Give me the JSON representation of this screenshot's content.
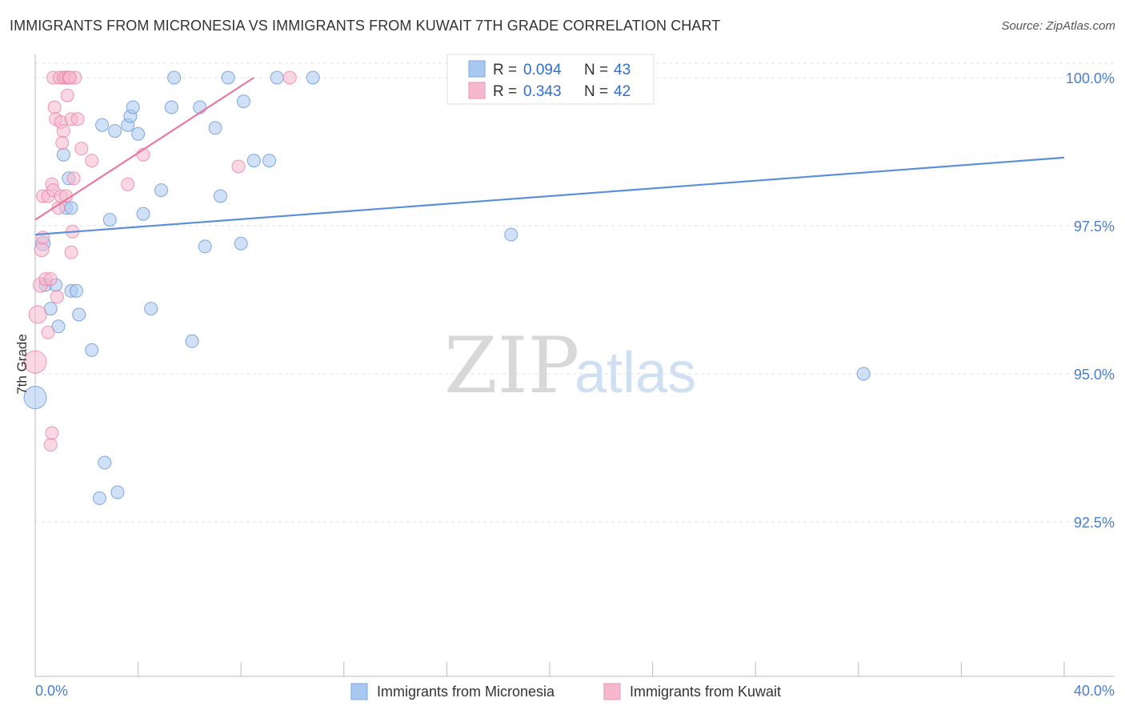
{
  "header": {
    "title": "IMMIGRANTS FROM MICRONESIA VS IMMIGRANTS FROM KUWAIT 7TH GRADE CORRELATION CHART",
    "source": "Source: ZipAtlas.com"
  },
  "watermark": {
    "zip": "ZIP",
    "atlas": "atlas"
  },
  "legend": {
    "rows": [
      {
        "r_label": "R = ",
        "r_value": "0.094",
        "n_label": "N = ",
        "n_value": "43",
        "color": "#a9c8f0"
      },
      {
        "r_label": "R = ",
        "r_value": "0.343",
        "n_label": "N = ",
        "n_value": "42",
        "color": "#f5b8cc"
      }
    ]
  },
  "bottom_legend": [
    {
      "label": "Immigrants from Micronesia",
      "color": "#a9c8f0"
    },
    {
      "label": "Immigrants from Kuwait",
      "color": "#f5b8cc"
    }
  ],
  "chart_data": {
    "type": "scatter",
    "title": "IMMIGRANTS FROM MICRONESIA VS IMMIGRANTS FROM KUWAIT 7TH GRADE CORRELATION CHART",
    "xlabel": "",
    "ylabel": "7th Grade",
    "xlim": [
      0,
      40
    ],
    "ylim": [
      90.0,
      100.25
    ],
    "x_tick_labels": [
      "0.0%",
      "40.0%"
    ],
    "y_ticks": [
      92.5,
      95.0,
      97.5,
      100.0
    ],
    "y_tick_labels": [
      "92.5%",
      "95.0%",
      "97.5%",
      "100.0%"
    ],
    "series": [
      {
        "name": "Immigrants from Micronesia",
        "color": "#5b8fd6",
        "fill": "#a9c8f0",
        "r": 0.094,
        "n": 43,
        "trend": {
          "x": [
            0,
            40
          ],
          "y": [
            97.35,
            98.65
          ]
        },
        "points": [
          {
            "x": 0.0,
            "y": 94.6,
            "s": 14
          },
          {
            "x": 0.3,
            "y": 97.2,
            "s": 9
          },
          {
            "x": 0.4,
            "y": 96.5,
            "s": 8
          },
          {
            "x": 0.6,
            "y": 96.1,
            "s": 8
          },
          {
            "x": 0.8,
            "y": 96.5,
            "s": 8
          },
          {
            "x": 0.9,
            "y": 95.8,
            "s": 8
          },
          {
            "x": 1.1,
            "y": 98.7,
            "s": 8
          },
          {
            "x": 1.2,
            "y": 97.8,
            "s": 8
          },
          {
            "x": 1.4,
            "y": 97.8,
            "s": 8
          },
          {
            "x": 1.3,
            "y": 98.3,
            "s": 8
          },
          {
            "x": 1.4,
            "y": 96.4,
            "s": 8
          },
          {
            "x": 1.6,
            "y": 96.4,
            "s": 8
          },
          {
            "x": 1.7,
            "y": 96.0,
            "s": 8
          },
          {
            "x": 2.2,
            "y": 95.4,
            "s": 8
          },
          {
            "x": 2.6,
            "y": 99.2,
            "s": 8
          },
          {
            "x": 2.7,
            "y": 93.5,
            "s": 8
          },
          {
            "x": 2.5,
            "y": 92.9,
            "s": 8
          },
          {
            "x": 2.9,
            "y": 97.6,
            "s": 8
          },
          {
            "x": 3.1,
            "y": 99.1,
            "s": 8
          },
          {
            "x": 3.2,
            "y": 93.0,
            "s": 8
          },
          {
            "x": 3.6,
            "y": 99.2,
            "s": 8
          },
          {
            "x": 3.7,
            "y": 99.35,
            "s": 8
          },
          {
            "x": 3.8,
            "y": 99.5,
            "s": 8
          },
          {
            "x": 4.0,
            "y": 99.05,
            "s": 8
          },
          {
            "x": 4.2,
            "y": 97.7,
            "s": 8
          },
          {
            "x": 4.5,
            "y": 96.1,
            "s": 8
          },
          {
            "x": 4.9,
            "y": 98.1,
            "s": 8
          },
          {
            "x": 5.3,
            "y": 99.5,
            "s": 8
          },
          {
            "x": 5.4,
            "y": 100.0,
            "s": 8
          },
          {
            "x": 6.1,
            "y": 95.55,
            "s": 8
          },
          {
            "x": 6.4,
            "y": 99.5,
            "s": 8
          },
          {
            "x": 6.6,
            "y": 97.15,
            "s": 8
          },
          {
            "x": 7.0,
            "y": 99.15,
            "s": 8
          },
          {
            "x": 7.2,
            "y": 98.0,
            "s": 8
          },
          {
            "x": 7.5,
            "y": 100.0,
            "s": 8
          },
          {
            "x": 8.0,
            "y": 97.2,
            "s": 8
          },
          {
            "x": 8.1,
            "y": 99.6,
            "s": 8
          },
          {
            "x": 8.5,
            "y": 98.6,
            "s": 8
          },
          {
            "x": 9.1,
            "y": 98.6,
            "s": 8
          },
          {
            "x": 9.4,
            "y": 100.0,
            "s": 8
          },
          {
            "x": 10.8,
            "y": 100.0,
            "s": 8
          },
          {
            "x": 18.5,
            "y": 97.35,
            "s": 8
          },
          {
            "x": 32.2,
            "y": 95.0,
            "s": 8
          }
        ]
      },
      {
        "name": "Immigrants from Kuwait",
        "color": "#e87aa0",
        "fill": "#f5b8cc",
        "r": 0.343,
        "n": 42,
        "trend": {
          "x": [
            0,
            8.5
          ],
          "y": [
            97.6,
            100.0
          ]
        },
        "points": [
          {
            "x": 0.0,
            "y": 95.2,
            "s": 14
          },
          {
            "x": 0.1,
            "y": 96.0,
            "s": 11
          },
          {
            "x": 0.2,
            "y": 96.5,
            "s": 9
          },
          {
            "x": 0.25,
            "y": 97.1,
            "s": 9
          },
          {
            "x": 0.3,
            "y": 97.3,
            "s": 8
          },
          {
            "x": 0.3,
            "y": 98.0,
            "s": 8
          },
          {
            "x": 0.4,
            "y": 96.6,
            "s": 8
          },
          {
            "x": 0.5,
            "y": 95.7,
            "s": 8
          },
          {
            "x": 0.5,
            "y": 98.0,
            "s": 8
          },
          {
            "x": 0.6,
            "y": 96.6,
            "s": 8
          },
          {
            "x": 0.6,
            "y": 93.8,
            "s": 8
          },
          {
            "x": 0.65,
            "y": 94.0,
            "s": 8
          },
          {
            "x": 0.65,
            "y": 98.2,
            "s": 8
          },
          {
            "x": 0.7,
            "y": 98.1,
            "s": 8
          },
          {
            "x": 0.7,
            "y": 100.0,
            "s": 8
          },
          {
            "x": 0.75,
            "y": 99.5,
            "s": 8
          },
          {
            "x": 0.8,
            "y": 99.3,
            "s": 8
          },
          {
            "x": 0.85,
            "y": 96.3,
            "s": 8
          },
          {
            "x": 0.9,
            "y": 97.8,
            "s": 8
          },
          {
            "x": 0.95,
            "y": 100.0,
            "s": 8
          },
          {
            "x": 1.0,
            "y": 99.25,
            "s": 8
          },
          {
            "x": 1.0,
            "y": 98.0,
            "s": 8
          },
          {
            "x": 1.05,
            "y": 98.9,
            "s": 8
          },
          {
            "x": 1.1,
            "y": 99.1,
            "s": 8
          },
          {
            "x": 1.1,
            "y": 100.0,
            "s": 8
          },
          {
            "x": 1.2,
            "y": 100.0,
            "s": 8
          },
          {
            "x": 1.2,
            "y": 98.0,
            "s": 8
          },
          {
            "x": 1.25,
            "y": 99.7,
            "s": 8
          },
          {
            "x": 1.3,
            "y": 100.0,
            "s": 8
          },
          {
            "x": 1.4,
            "y": 99.3,
            "s": 8
          },
          {
            "x": 1.4,
            "y": 97.05,
            "s": 8
          },
          {
            "x": 1.45,
            "y": 97.4,
            "s": 8
          },
          {
            "x": 1.5,
            "y": 98.3,
            "s": 8
          },
          {
            "x": 1.55,
            "y": 100.0,
            "s": 8
          },
          {
            "x": 1.65,
            "y": 99.3,
            "s": 8
          },
          {
            "x": 1.8,
            "y": 98.8,
            "s": 8
          },
          {
            "x": 2.2,
            "y": 98.6,
            "s": 8
          },
          {
            "x": 3.6,
            "y": 98.2,
            "s": 8
          },
          {
            "x": 4.2,
            "y": 98.7,
            "s": 8
          },
          {
            "x": 7.9,
            "y": 98.5,
            "s": 8
          },
          {
            "x": 9.9,
            "y": 100.0,
            "s": 8
          },
          {
            "x": 1.35,
            "y": 100.0,
            "s": 8
          }
        ]
      }
    ]
  }
}
